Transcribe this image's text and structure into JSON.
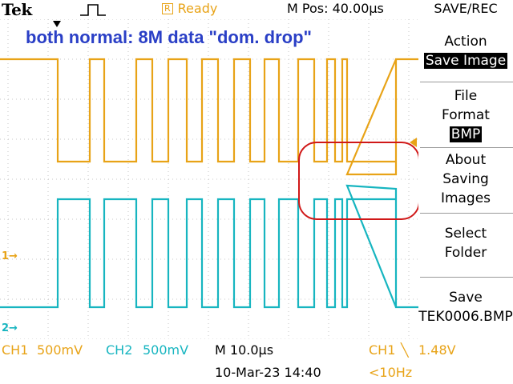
{
  "header": {
    "brand": "Tek",
    "status": "Ready",
    "status_box": "R",
    "mpos": "M Pos: 40.00µs"
  },
  "overlay": {
    "title": "both normal: 8M data \"dom. drop\""
  },
  "menu": {
    "title": "SAVE/REC",
    "action_label": "Action",
    "action_value": "Save Image",
    "file_format_line1": "File",
    "file_format_line2": "Format",
    "file_format_value": "BMP",
    "about_line1": "About",
    "about_line2": "Saving",
    "about_line3": "Images",
    "select_line1": "Select",
    "select_line2": "Folder",
    "save_line1": "Save",
    "save_value": "TEK0006.BMP"
  },
  "markers": {
    "ch1": "1→",
    "ch2": "2→"
  },
  "footer": {
    "ch1_label": "CH1",
    "ch1_scale": "500mV",
    "ch2_label": "CH2",
    "ch2_scale": "500mV",
    "timebase": "M 10.0µs",
    "trigger_source": "CH1",
    "trigger_slope": "╲",
    "trigger_level": "1.48V",
    "datetime": "10-Mar-23 14:40",
    "freq": "<10Hz"
  },
  "colors": {
    "ch1": "#e8a317",
    "ch2": "#17b5c0",
    "annotation": "#d01818",
    "title": "#2a3fc6"
  }
}
